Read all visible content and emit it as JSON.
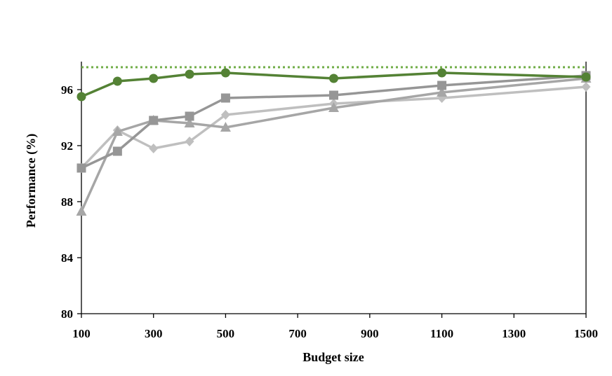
{
  "chart_data": {
    "type": "line",
    "xlabel": "Budget size",
    "ylabel": "Performance (%)",
    "xlim": [
      100,
      1500
    ],
    "ylim": [
      80,
      98
    ],
    "xticks": [
      100,
      300,
      500,
      700,
      900,
      1100,
      1300,
      1500
    ],
    "yticks": [
      80,
      84,
      88,
      92,
      96
    ],
    "grid": false,
    "legend": "none",
    "reference_line": {
      "y": 97.6,
      "style": "dotted",
      "color": "#70ad47"
    },
    "series": [
      {
        "color": "#548235",
        "marker": "circle",
        "x": [
          100,
          200,
          300,
          400,
          500,
          800,
          1100,
          1500
        ],
        "y": [
          95.5,
          96.6,
          96.8,
          97.1,
          97.2,
          96.8,
          97.2,
          96.9
        ]
      },
      {
        "color": "#969696",
        "marker": "square",
        "x": [
          100,
          200,
          300,
          400,
          500,
          800,
          1100,
          1500
        ],
        "y": [
          90.4,
          91.6,
          93.8,
          94.1,
          95.4,
          95.6,
          96.3,
          97.0
        ]
      },
      {
        "color": "#a6a6a6",
        "marker": "triangle",
        "x": [
          100,
          200,
          300,
          400,
          500,
          800,
          1100,
          1500
        ],
        "y": [
          87.3,
          93.0,
          93.8,
          93.6,
          93.3,
          94.7,
          95.8,
          96.8
        ]
      },
      {
        "color": "#bfbfbf",
        "marker": "diamond",
        "x": [
          100,
          200,
          300,
          400,
          500,
          800,
          1100,
          1500
        ],
        "y": [
          90.4,
          93.1,
          91.8,
          92.3,
          94.2,
          95.0,
          95.4,
          96.2
        ]
      }
    ]
  }
}
